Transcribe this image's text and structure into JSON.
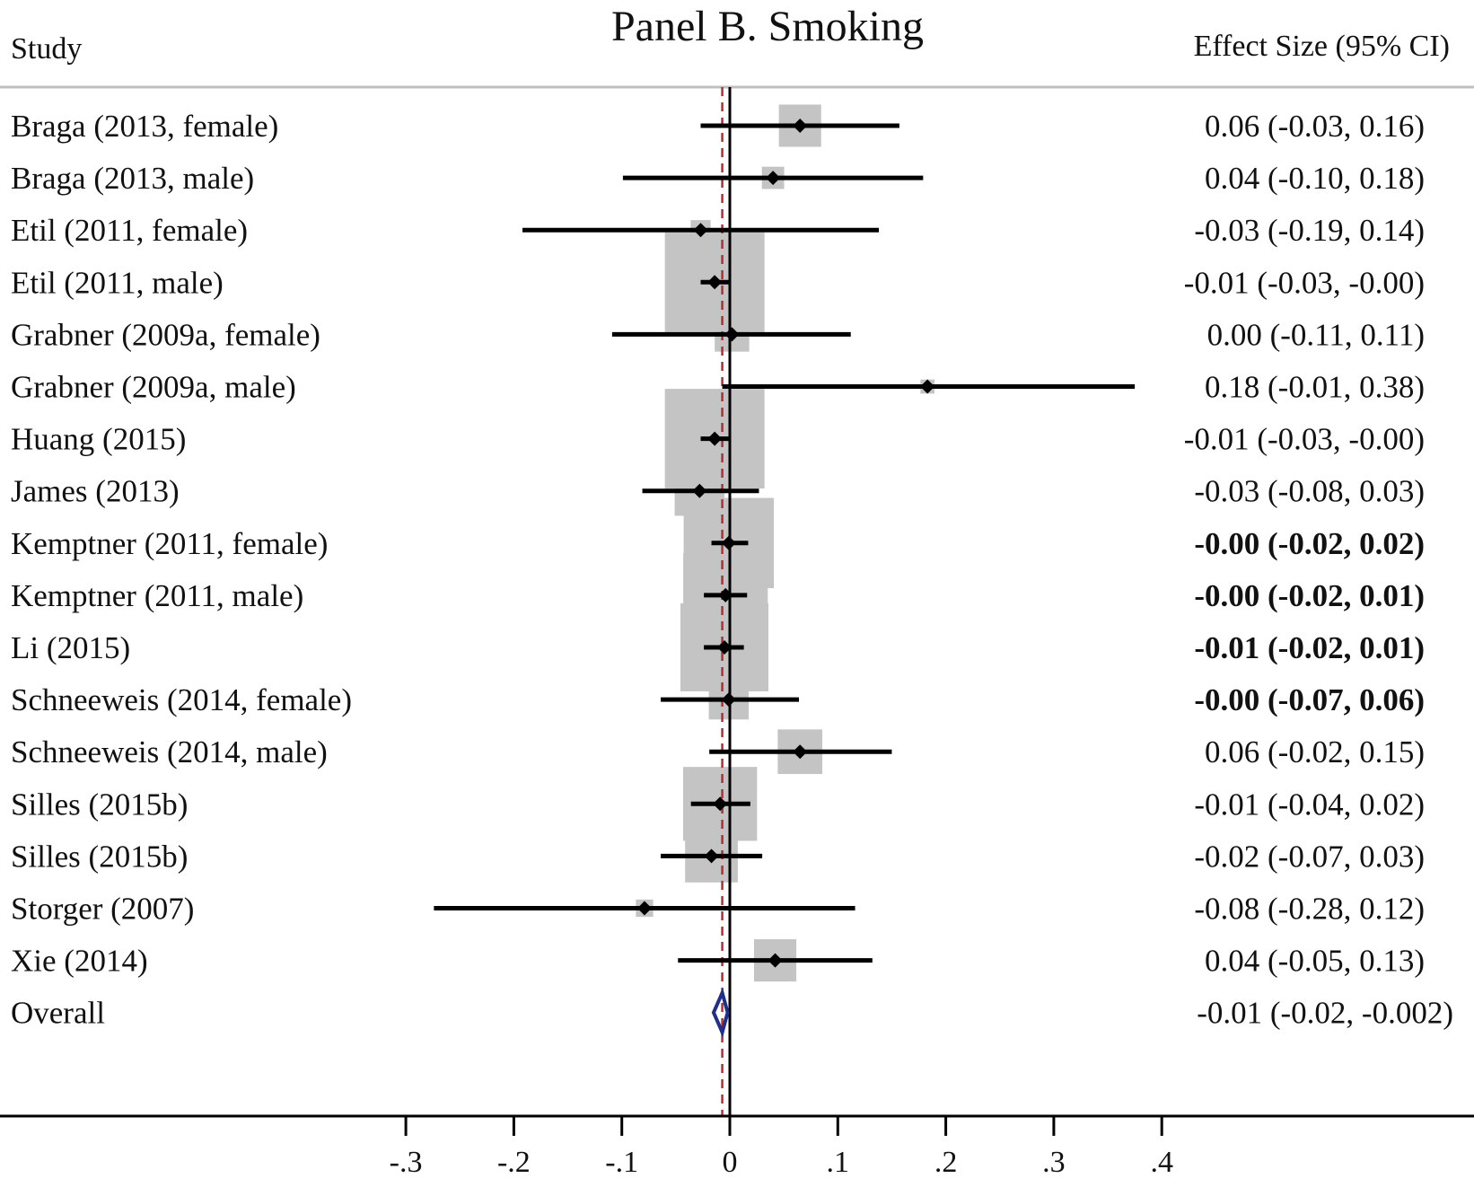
{
  "title": "Panel B. Smoking",
  "headers": {
    "study": "Study",
    "effect": "Effect Size (95% CI)"
  },
  "colors": {
    "weight_box": "#c4c4c4",
    "ci_line": "#000000",
    "point": "#000000",
    "overall_diamond": "#1f2f8a",
    "overall_ref_line": "#b03030",
    "axis": "#000000",
    "separator": "#bfbfbf"
  },
  "chart_data": {
    "type": "forest",
    "title": "Panel B. Smoking",
    "xlim": [
      -0.3,
      0.4
    ],
    "x_ticks": [
      -0.3,
      -0.2,
      -0.1,
      0,
      0.1,
      0.2,
      0.3,
      0.4
    ],
    "x_tick_labels": [
      "-.3",
      "-.2",
      "-.1",
      "0",
      ".1",
      ".2",
      ".3",
      ".4"
    ],
    "null_line": 0,
    "overall_line": -0.007,
    "studies": [
      {
        "label": "Braga (2013, female)",
        "es": 0.065,
        "lo": -0.027,
        "hi": 0.157,
        "weight": 0.18,
        "text": "0.06 (-0.03, 0.16)",
        "bold": false
      },
      {
        "label": "Braga (2013, male)",
        "es": 0.04,
        "lo": -0.099,
        "hi": 0.179,
        "weight": 0.05,
        "text": "0.04 (-0.10, 0.18)",
        "bold": false
      },
      {
        "label": "Etil   (2011, female)",
        "es": -0.027,
        "lo": -0.192,
        "hi": 0.138,
        "weight": 0.04,
        "text": "-0.03 (-0.19, 0.14)",
        "bold": false
      },
      {
        "label": "Etil   (2011, male)",
        "es": -0.014,
        "lo": -0.027,
        "hi": 0.0,
        "weight": 1.0,
        "text": "-0.01 (-0.03, -0.00)",
        "bold": false
      },
      {
        "label": "Grabner (2009a, female)",
        "es": 0.002,
        "lo": -0.109,
        "hi": 0.112,
        "weight": 0.12,
        "text": "0.00 (-0.11, 0.11)",
        "bold": false
      },
      {
        "label": "Grabner (2009a, male)",
        "es": 0.183,
        "lo": -0.007,
        "hi": 0.375,
        "weight": 0.02,
        "text": "0.18 (-0.01, 0.38)",
        "bold": false
      },
      {
        "label": "Huang (2015)",
        "es": -0.014,
        "lo": -0.027,
        "hi": 0.0,
        "weight": 1.0,
        "text": "-0.01 (-0.03, -0.00)",
        "bold": false
      },
      {
        "label": "James (2013)",
        "es": -0.028,
        "lo": -0.081,
        "hi": 0.027,
        "weight": 0.25,
        "text": "-0.03 (-0.08, 0.03)",
        "bold": false
      },
      {
        "label": "Kemptner (2011, female)",
        "es": -0.001,
        "lo": -0.017,
        "hi": 0.017,
        "weight": 0.82,
        "text": "-0.00 (-0.02, 0.02)",
        "bold": true
      },
      {
        "label": "Kemptner (2011, male)",
        "es": -0.004,
        "lo": -0.024,
        "hi": 0.016,
        "weight": 0.72,
        "text": "-0.00 (-0.02, 0.01)",
        "bold": true
      },
      {
        "label": "Li (2015)",
        "es": -0.005,
        "lo": -0.024,
        "hi": 0.013,
        "weight": 0.78,
        "text": "-0.01 (-0.02, 0.01)",
        "bold": true
      },
      {
        "label": "Schneeweis (2014, female)",
        "es": -0.001,
        "lo": -0.064,
        "hi": 0.064,
        "weight": 0.16,
        "text": "-0.00 (-0.07, 0.06)",
        "bold": true
      },
      {
        "label": "Schneeweis (2014, male)",
        "es": 0.065,
        "lo": -0.019,
        "hi": 0.15,
        "weight": 0.2,
        "text": "0.06 (-0.02, 0.15)",
        "bold": false
      },
      {
        "label": "Silles (2015b)",
        "es": -0.009,
        "lo": -0.036,
        "hi": 0.019,
        "weight": 0.55,
        "text": "-0.01 (-0.04, 0.02)",
        "bold": false
      },
      {
        "label": "Silles (2015b)",
        "es": -0.017,
        "lo": -0.064,
        "hi": 0.03,
        "weight": 0.28,
        "text": "-0.02 (-0.07, 0.03)",
        "bold": false
      },
      {
        "label": "Storger (2007)",
        "es": -0.079,
        "lo": -0.274,
        "hi": 0.116,
        "weight": 0.03,
        "text": "-0.08 (-0.28, 0.12)",
        "bold": false
      },
      {
        "label": "Xie (2014)",
        "es": 0.042,
        "lo": -0.048,
        "hi": 0.132,
        "weight": 0.18,
        "text": "0.04 (-0.05, 0.13)",
        "bold": false
      }
    ],
    "overall": {
      "label": "Overall",
      "es": -0.007,
      "lo": -0.015,
      "hi": -0.002,
      "text": "-0.01 (-0.02, -0.002)",
      "bold": false
    }
  }
}
